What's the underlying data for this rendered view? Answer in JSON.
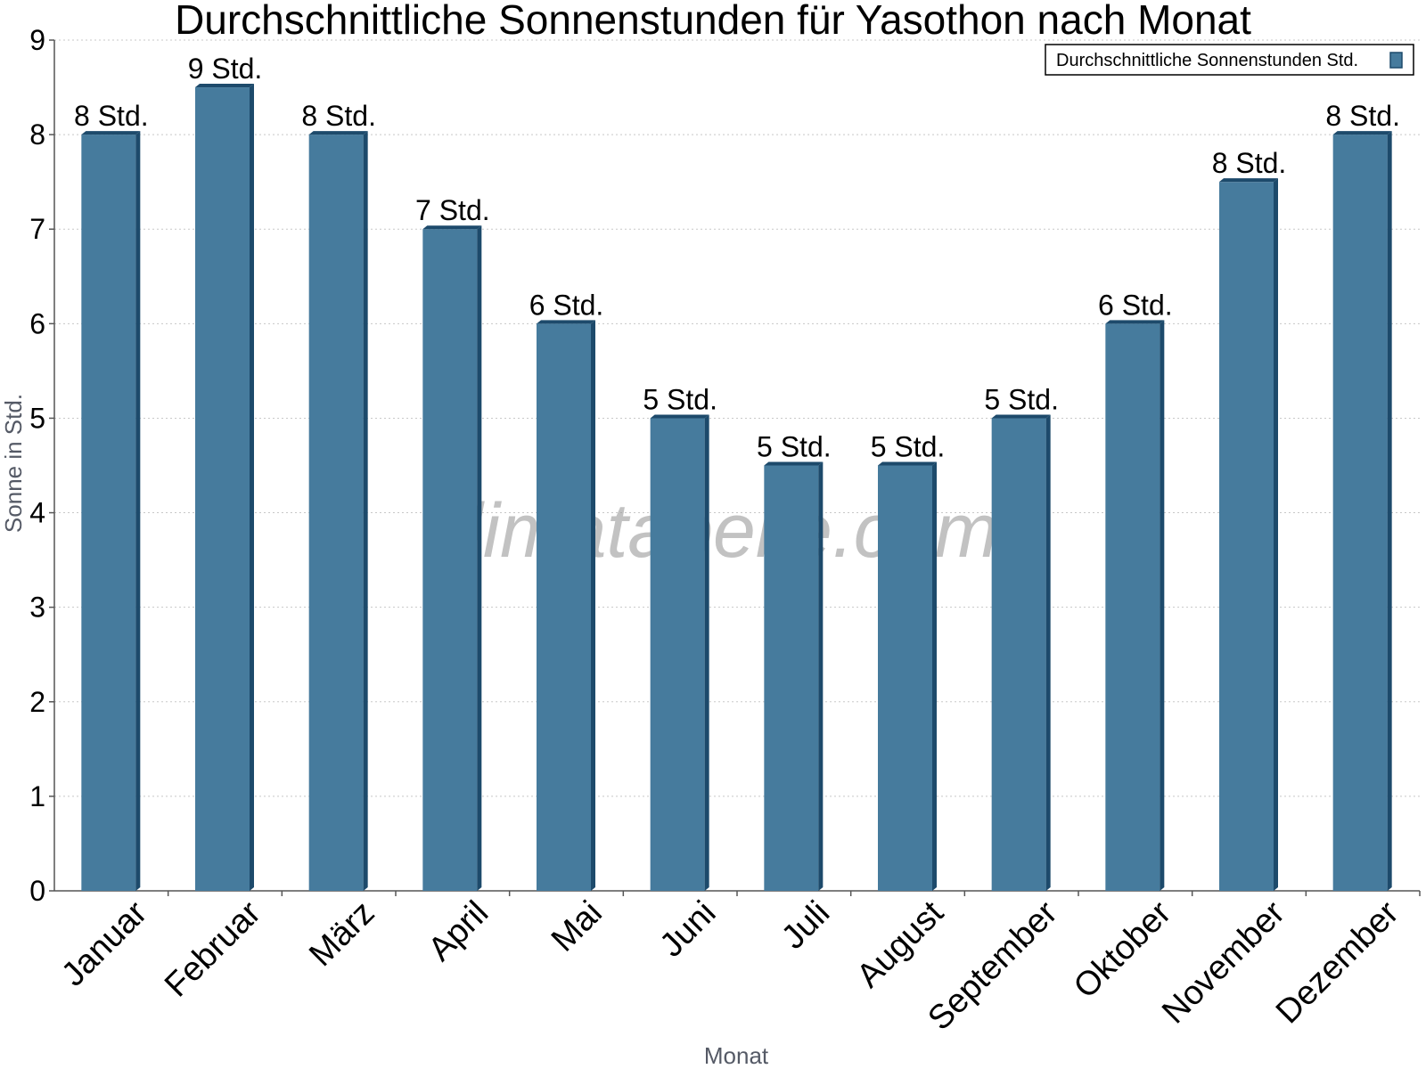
{
  "chart_data": {
    "type": "bar",
    "title": "Durchschnittliche Sonnenstunden für Yasothon nach Monat",
    "xlabel": "Monat",
    "ylabel": "Sonne in Std.",
    "ylim": [
      0,
      9
    ],
    "yticks": [
      "0",
      "1",
      "2",
      "3",
      "4",
      "5",
      "6",
      "7",
      "8",
      "9"
    ],
    "grid": true,
    "legend_position": "top-right",
    "categories": [
      "Januar",
      "Februar",
      "März",
      "April",
      "Mai",
      "Juni",
      "Juli",
      "August",
      "September",
      "Oktober",
      "November",
      "Dezember"
    ],
    "series": [
      {
        "name": "Durchschnittliche Sonnenstunden Std.",
        "color": "#467b9d",
        "values": [
          8,
          8.5,
          8,
          7,
          6,
          5,
          4.5,
          4.5,
          5,
          6,
          7.5,
          8
        ],
        "labels": [
          "8 Std.",
          "9 Std.",
          "8 Std.",
          "7 Std.",
          "6 Std.",
          "5 Std.",
          "5 Std.",
          "5 Std.",
          "5 Std.",
          "6 Std.",
          "8 Std.",
          "8 Std."
        ]
      }
    ],
    "watermark": "klimatabelle.com"
  }
}
